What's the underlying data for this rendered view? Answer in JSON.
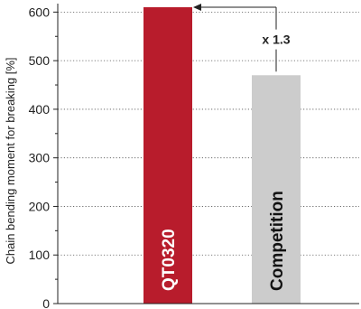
{
  "chart_data": {
    "type": "bar",
    "categories": [
      "QT0320",
      "Competition"
    ],
    "values": [
      610,
      470
    ],
    "ylabel": "Chain bending moment for breaking [%]",
    "ylim": [
      0,
      610
    ],
    "yticks": [
      0,
      100,
      200,
      300,
      400,
      500,
      600
    ],
    "grid": true,
    "colors": [
      "#b81c2c",
      "#cccccc"
    ],
    "label_colors": [
      "#ffffff",
      "#111111"
    ],
    "annotation": {
      "text": "x 1.3",
      "from": "Competition",
      "to": "QT0320"
    }
  }
}
